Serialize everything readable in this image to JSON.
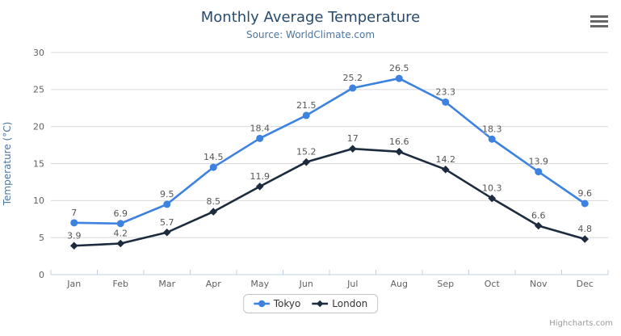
{
  "chart_data": {
    "type": "line",
    "title": "Monthly Average Temperature",
    "subtitle": "Source: WorldClimate.com",
    "categories": [
      "Jan",
      "Feb",
      "Mar",
      "Apr",
      "May",
      "Jun",
      "Jul",
      "Aug",
      "Sep",
      "Oct",
      "Nov",
      "Dec"
    ],
    "series": [
      {
        "name": "Tokyo",
        "marker": "circle",
        "color": "#3d82df",
        "values": [
          7,
          6.9,
          9.5,
          14.5,
          18.4,
          21.5,
          25.2,
          26.5,
          23.3,
          18.3,
          13.9,
          9.6
        ]
      },
      {
        "name": "London",
        "marker": "diamond",
        "color": "#1c2b3d",
        "values": [
          3.9,
          4.2,
          5.7,
          8.5,
          11.9,
          15.2,
          17,
          16.6,
          14.2,
          10.3,
          6.6,
          4.8
        ]
      }
    ],
    "xlabel": "",
    "ylabel": "Temperature (°C)",
    "ylim": [
      0,
      30
    ],
    "tick_interval": 5,
    "grid": true,
    "data_labels": true,
    "legend_position": "bottom"
  },
  "credits": "Highcharts.com",
  "icons": {
    "context_menu": "hamburger-icon"
  },
  "colors": {
    "title": "#274b6d",
    "subtitle": "#4d759e",
    "ylabel": "#4d759e",
    "axis_label": "#606060",
    "data_label": "#555555",
    "grid": "#d8d8d8",
    "axis_line": "#c0d0e0",
    "legend_text": "#333333",
    "legend_border": "#c4c4c4",
    "credits": "#999999",
    "menu_icon": "#666666",
    "background": "#ffffff"
  }
}
